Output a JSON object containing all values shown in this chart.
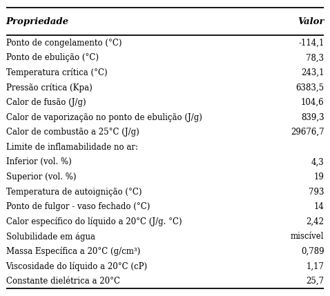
{
  "title_col1": "Propriedade",
  "title_col2": "Valor",
  "rows": [
    [
      "Ponto de congelamento (°C)",
      "-114,1"
    ],
    [
      "Ponto de ebulição (°C)",
      "78,3"
    ],
    [
      "Temperatura crítica (°C)",
      "243,1"
    ],
    [
      "Pressão crítica (Kpa)",
      "6383,5"
    ],
    [
      "Calor de fusão (J/g)",
      "104,6"
    ],
    [
      "Calor de vaporização no ponto de ebulição (J/g)",
      "839,3"
    ],
    [
      "Calor de combustão a 25°C (J/g)",
      "29676,7"
    ],
    [
      "Limite de inflamabilidade no ar:",
      ""
    ],
    [
      "Inferior (vol. %)",
      "4,3"
    ],
    [
      "Superior (vol. %)",
      "19"
    ],
    [
      "Temperatura de autoignição (°C)",
      "793"
    ],
    [
      "Ponto de fulgor - vaso fechado (°C)",
      "14"
    ],
    [
      "Calor específico do líquido a 20°C (J/g. °C)",
      "2,42"
    ],
    [
      "Solubilidade em água",
      "miscível"
    ],
    [
      "Massa Específica a 20°C (g/cm³)",
      "0,789"
    ],
    [
      "Viscosidade do líquido a 20°C (cP)",
      "1,17"
    ],
    [
      "Constante dielétrica a 20°C",
      "25,7"
    ]
  ],
  "background_color": "#ffffff",
  "border_color": "#000000",
  "text_color": "#000000",
  "font_size": 8.5,
  "header_font_size": 9.5,
  "figsize": [
    4.78,
    4.29
  ],
  "dpi": 100
}
